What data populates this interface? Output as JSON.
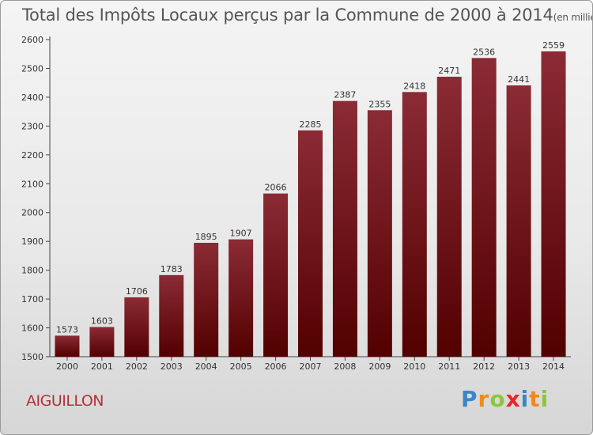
{
  "chart_data": {
    "type": "bar",
    "title": "Total des Impôts Locaux perçus par la Commune de 2000 à 2014",
    "subtitle": "(en milliers d'€)",
    "categories": [
      "2000",
      "2001",
      "2002",
      "2003",
      "2004",
      "2005",
      "2006",
      "2007",
      "2008",
      "2009",
      "2010",
      "2011",
      "2012",
      "2013",
      "2014"
    ],
    "values": [
      1573,
      1603,
      1706,
      1783,
      1895,
      1907,
      2066,
      2285,
      2387,
      2355,
      2418,
      2471,
      2536,
      2441,
      2559
    ],
    "ylim": [
      1500,
      2600
    ],
    "yticks": [
      1500,
      1600,
      1700,
      1800,
      1900,
      2000,
      2100,
      2200,
      2300,
      2400,
      2500,
      2600
    ],
    "xlabel": "",
    "ylabel": "",
    "grid": false,
    "bar_color_top": "#8b2b35",
    "bar_color_bottom": "#520000"
  },
  "commune": "AIGUILLON",
  "brand": {
    "letters": [
      "P",
      "r",
      "o",
      "x",
      "i",
      "t",
      "i"
    ],
    "colors": [
      "#3a86c8",
      "#f08a1c",
      "#8cc63f",
      "#e8262b",
      "#3a86c8",
      "#f08a1c",
      "#8cc63f"
    ]
  }
}
